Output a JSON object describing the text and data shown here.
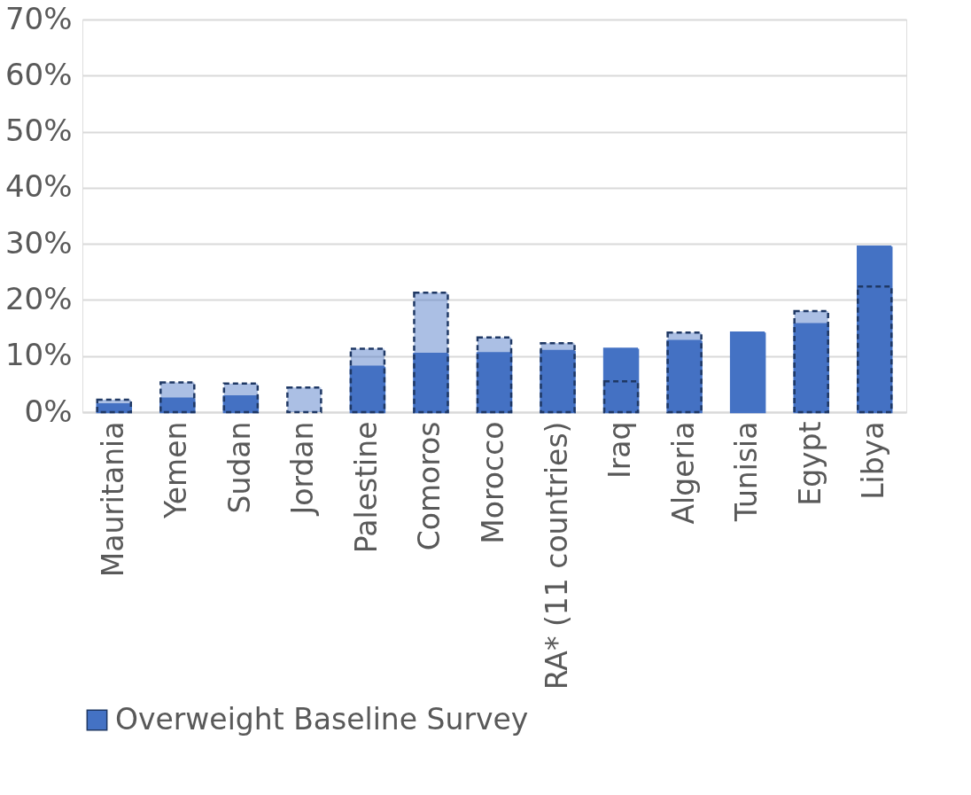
{
  "chart_data": {
    "type": "bar",
    "categories": [
      "Mauritania",
      "Yemen",
      "Sudan",
      "Jordan",
      "Palestine",
      "Comoros",
      "Morocco",
      "RA* (11 countries)",
      "Iraq",
      "Algeria",
      "Tunisia",
      "Egypt",
      "Libya"
    ],
    "series": [
      {
        "color": "#4472c4",
        "values": [
          1.4,
          2.4,
          2.8,
          null,
          8.1,
          10.4,
          10.5,
          10.9,
          11.3,
          12.7,
          14.2,
          15.7,
          29.5
        ]
      },
      {
        "name": "Overweight Baseline Survey",
        "color": "#4472c4",
        "values": [
          2.2,
          5.3,
          5.1,
          4.4,
          11.3,
          21.3,
          13.3,
          12.3,
          5.5,
          14.2,
          null,
          18.0,
          22.4
        ]
      }
    ],
    "ylim": [
      0,
      70
    ],
    "yticks": [
      {
        "value": 0,
        "label": "0%"
      },
      {
        "value": 10,
        "label": "10%"
      },
      {
        "value": 20,
        "label": "20%"
      },
      {
        "value": 30,
        "label": "30%"
      },
      {
        "value": 40,
        "label": "40%"
      },
      {
        "value": 50,
        "label": "50%"
      },
      {
        "value": 60,
        "label": "60%"
      },
      {
        "value": 70,
        "label": "70%"
      }
    ],
    "grid": "y",
    "legend": "bottom"
  }
}
